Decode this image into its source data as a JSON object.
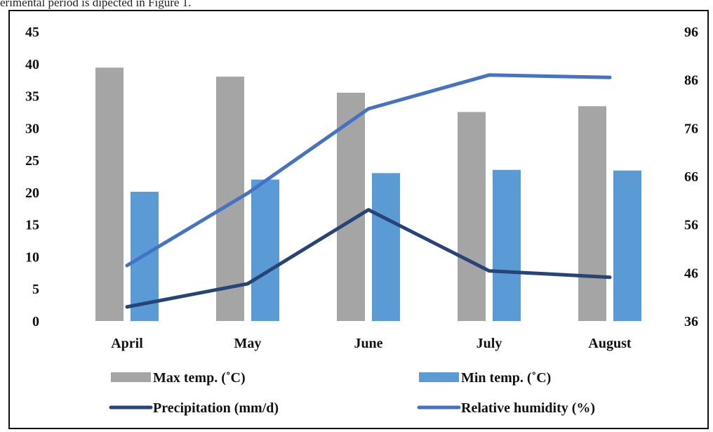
{
  "caption": "erimental period is dipected in Figure 1.",
  "chart_data": {
    "type": "bar",
    "categories": [
      "April",
      "May",
      "June",
      "July",
      "August"
    ],
    "left_axis": {
      "ticks": [
        "0",
        "5",
        "10",
        "15",
        "20",
        "25",
        "30",
        "35",
        "40",
        "45"
      ],
      "ylim": [
        0,
        45
      ]
    },
    "right_axis": {
      "ticks": [
        "36",
        "46",
        "56",
        "66",
        "76",
        "86",
        "96"
      ],
      "ylim": [
        36,
        96
      ]
    },
    "series": [
      {
        "name": "Max temp. (˚C)",
        "kind": "bar",
        "axis": "left",
        "color": "#A5A5A5",
        "values": [
          39.4,
          38.0,
          35.5,
          32.5,
          33.4
        ]
      },
      {
        "name": "Min temp. (˚C)",
        "kind": "bar",
        "axis": "left",
        "color": "#5B9BD5",
        "values": [
          20.1,
          22.0,
          23.0,
          23.5,
          23.4
        ]
      },
      {
        "name": "Precipitation (mm/d)",
        "kind": "line",
        "axis": "left",
        "color": "#264478",
        "values": [
          2.2,
          5.8,
          17.3,
          7.8,
          6.8
        ]
      },
      {
        "name": "Relative humidity (%)",
        "kind": "line",
        "axis": "right",
        "color": "#4472C4",
        "values": [
          47.5,
          62.5,
          80.0,
          87.0,
          86.5
        ]
      }
    ],
    "grid": false,
    "legend_position": "bottom"
  }
}
